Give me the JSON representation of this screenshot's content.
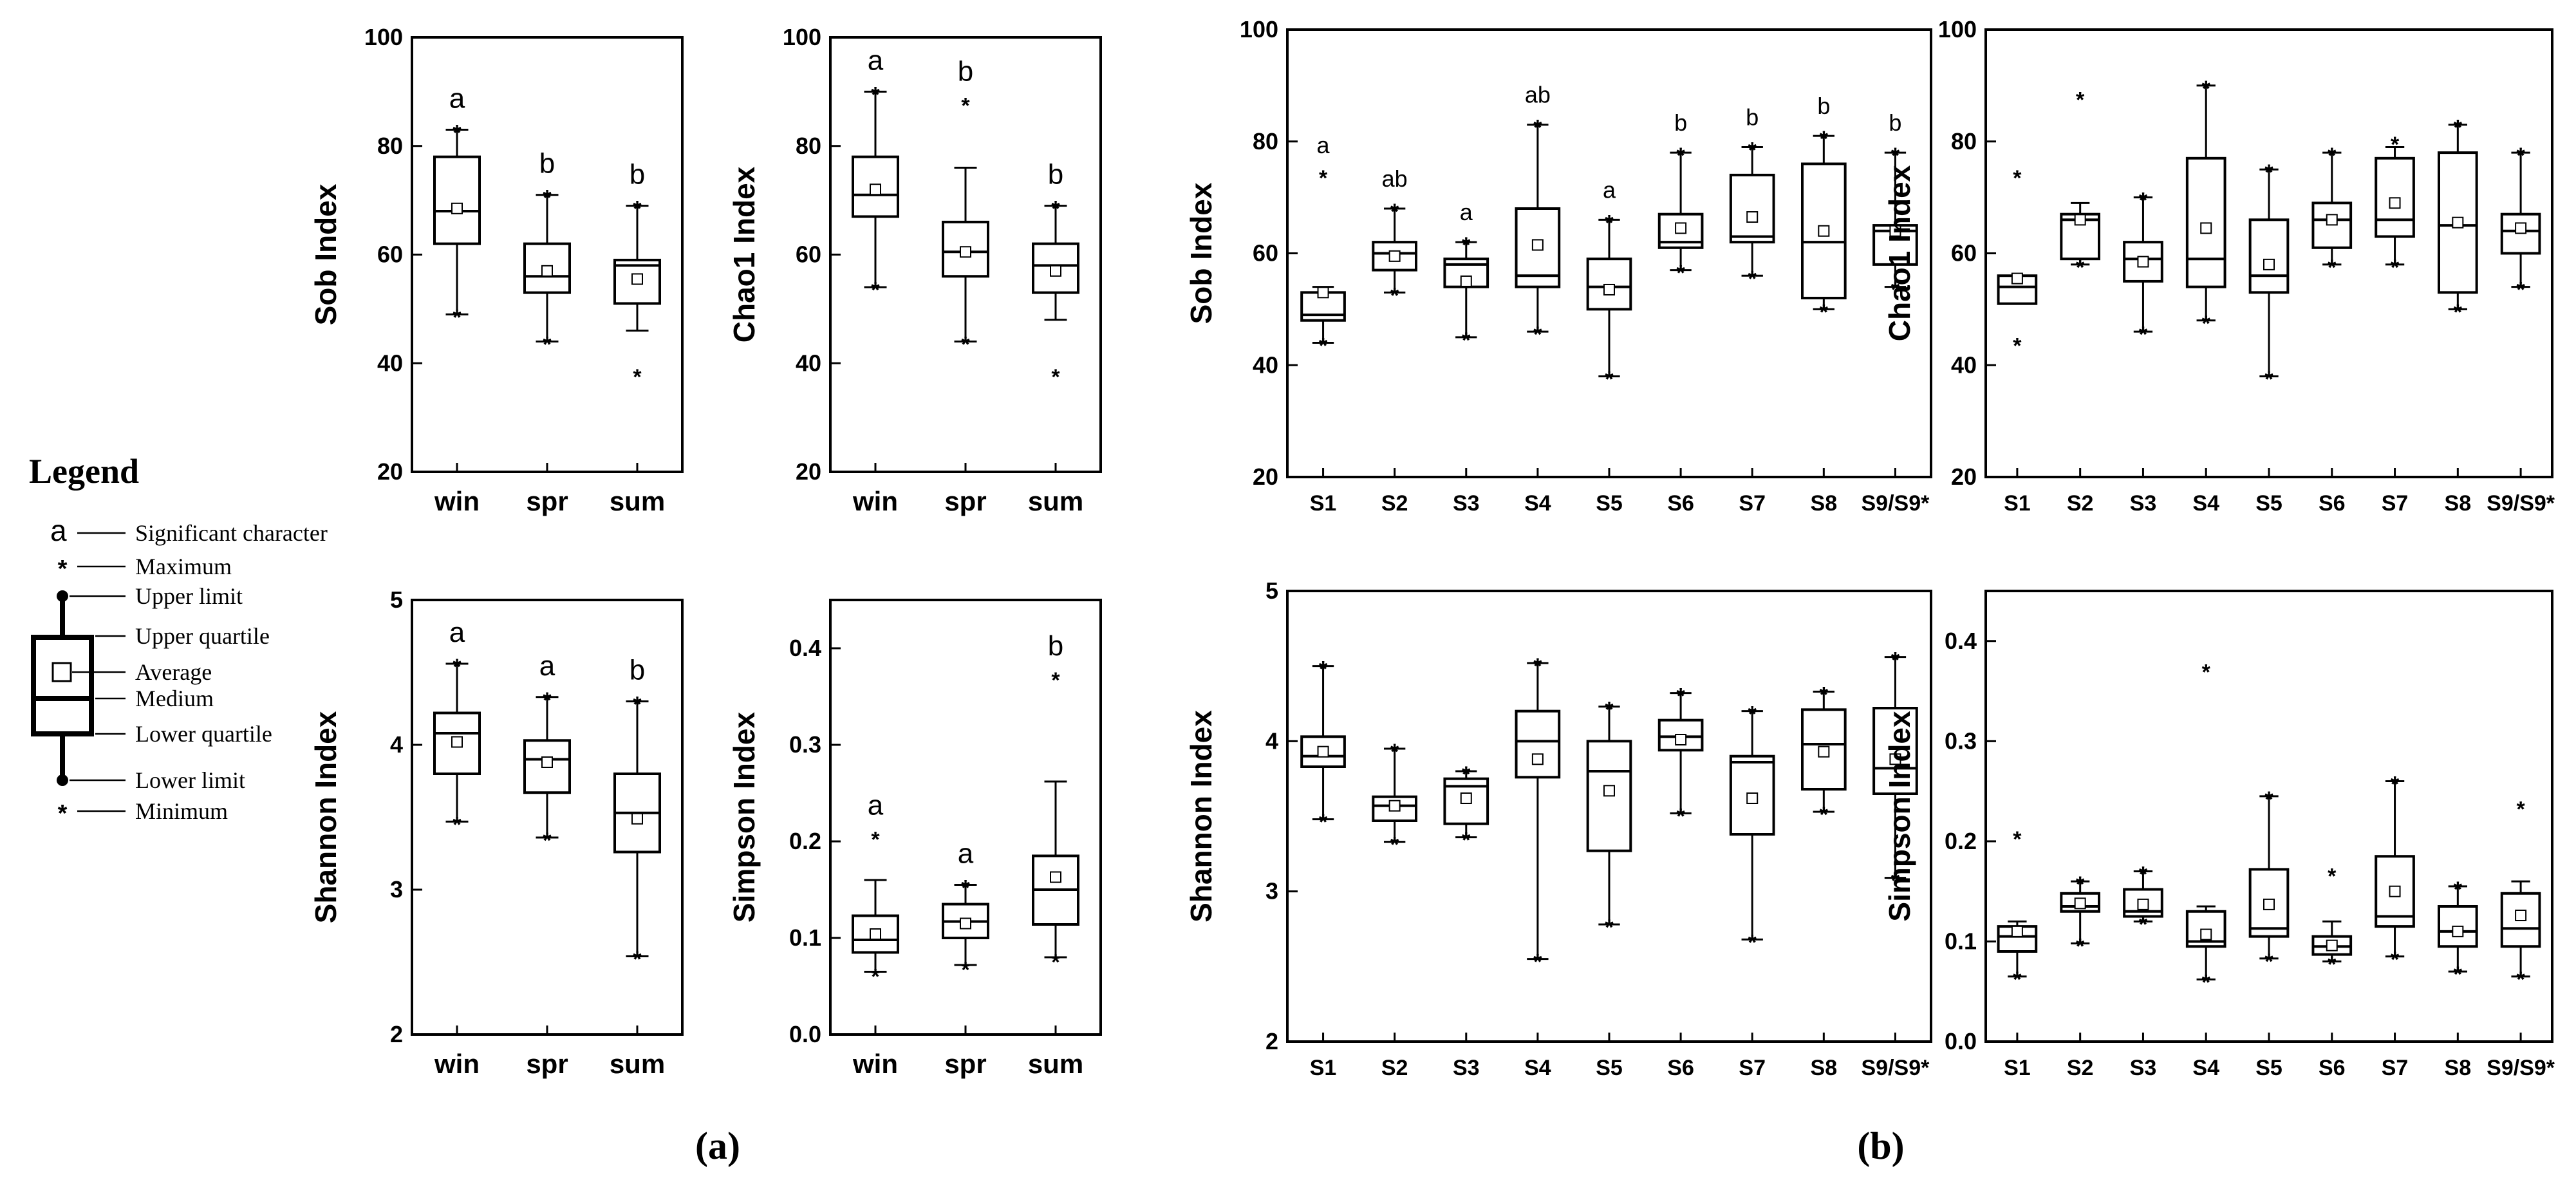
{
  "figure": {
    "panel_labels": [
      "(a)",
      "(b)"
    ]
  },
  "legend": {
    "title": "Legend",
    "items": [
      {
        "symbol": "a",
        "label": "Significant character"
      },
      {
        "symbol": "max-star",
        "label": "Maximum"
      },
      {
        "symbol": "whisker-top",
        "label": "Upper limit"
      },
      {
        "symbol": "box-top",
        "label": "Upper quartile"
      },
      {
        "symbol": "mean-square",
        "label": "Average"
      },
      {
        "symbol": "median-line",
        "label": "Medium"
      },
      {
        "symbol": "box-bottom",
        "label": "Lower quartile"
      },
      {
        "symbol": "whisker-bottom",
        "label": "Lower limit"
      },
      {
        "symbol": "min-star",
        "label": "Minimum"
      }
    ]
  },
  "chart_data": [
    {
      "id": "a-sob",
      "panel": "(a)",
      "type": "box",
      "ylabel": "Sob Index",
      "ylim": [
        20,
        100
      ],
      "yticks": [
        20,
        40,
        60,
        80,
        100
      ],
      "categories": [
        "win",
        "spr",
        "sum"
      ],
      "letters": [
        "a",
        "b",
        "b"
      ],
      "boxes": [
        {
          "q1": 62,
          "median": 68,
          "q3": 78,
          "whisker_low": 49,
          "whisker_high": 83,
          "mean": 68.5,
          "min": 49,
          "max": 83
        },
        {
          "q1": 53,
          "median": 56,
          "q3": 62,
          "whisker_low": 44,
          "whisker_high": 71,
          "mean": 57,
          "min": 44,
          "max": 71
        },
        {
          "q1": 51,
          "median": 58,
          "q3": 59,
          "whisker_low": 46,
          "whisker_high": 69,
          "mean": 55.5,
          "min": 38,
          "max": 69
        }
      ]
    },
    {
      "id": "a-chao1",
      "panel": "(a)",
      "type": "box",
      "ylabel": "Chao1 Index",
      "ylim": [
        20,
        100
      ],
      "yticks": [
        20,
        40,
        60,
        80,
        100
      ],
      "categories": [
        "win",
        "spr",
        "sum"
      ],
      "letters": [
        "a",
        "b",
        "b"
      ],
      "boxes": [
        {
          "q1": 67,
          "median": 71,
          "q3": 78,
          "whisker_low": 54,
          "whisker_high": 90,
          "mean": 72,
          "min": 54,
          "max": 90
        },
        {
          "q1": 56,
          "median": 60.5,
          "q3": 66,
          "whisker_low": 44,
          "whisker_high": 76,
          "mean": 60.5,
          "min": 44,
          "max": 88
        },
        {
          "q1": 53,
          "median": 58,
          "q3": 62,
          "whisker_low": 48,
          "whisker_high": 69,
          "mean": 57,
          "min": 38,
          "max": 69
        }
      ]
    },
    {
      "id": "a-shannon",
      "panel": "(a)",
      "type": "box",
      "ylabel": "Shannon Index",
      "ylim": [
        2,
        5
      ],
      "yticks": [
        2,
        3,
        4,
        5
      ],
      "categories": [
        "win",
        "spr",
        "sum"
      ],
      "letters": [
        "a",
        "a",
        "b"
      ],
      "boxes": [
        {
          "q1": 3.8,
          "median": 4.08,
          "q3": 4.22,
          "whisker_low": 3.47,
          "whisker_high": 4.56,
          "mean": 4.02,
          "min": 3.47,
          "max": 4.56
        },
        {
          "q1": 3.67,
          "median": 3.9,
          "q3": 4.03,
          "whisker_low": 3.36,
          "whisker_high": 4.33,
          "mean": 3.88,
          "min": 3.36,
          "max": 4.33
        },
        {
          "q1": 3.26,
          "median": 3.53,
          "q3": 3.8,
          "whisker_low": 2.54,
          "whisker_high": 4.3,
          "mean": 3.49,
          "min": 2.54,
          "max": 4.3
        }
      ]
    },
    {
      "id": "a-simpson",
      "panel": "(a)",
      "type": "box",
      "ylabel": "Simpson Index",
      "ylim": [
        0,
        0.45
      ],
      "yticks": [
        0.0,
        0.1,
        0.2,
        0.3,
        0.4
      ],
      "categories": [
        "win",
        "spr",
        "sum"
      ],
      "letters": [
        "a",
        "a",
        "b"
      ],
      "boxes": [
        {
          "q1": 0.085,
          "median": 0.098,
          "q3": 0.123,
          "whisker_low": 0.065,
          "whisker_high": 0.16,
          "mean": 0.104,
          "min": 0.063,
          "max": 0.205
        },
        {
          "q1": 0.1,
          "median": 0.117,
          "q3": 0.135,
          "whisker_low": 0.072,
          "whisker_high": 0.155,
          "mean": 0.115,
          "min": 0.07,
          "max": 0.155
        },
        {
          "q1": 0.114,
          "median": 0.15,
          "q3": 0.185,
          "whisker_low": 0.08,
          "whisker_high": 0.262,
          "mean": 0.163,
          "min": 0.078,
          "max": 0.37
        }
      ]
    },
    {
      "id": "b-sob",
      "panel": "(b)",
      "type": "box",
      "ylabel": "Sob Index",
      "ylim": [
        20,
        100
      ],
      "yticks": [
        20,
        40,
        60,
        80,
        100
      ],
      "categories": [
        "S1",
        "S2",
        "S3",
        "S4",
        "S5",
        "S6",
        "S7",
        "S8",
        "S9/S9*"
      ],
      "letters": [
        "a",
        "ab",
        "a",
        "ab",
        "a",
        "b",
        "b",
        "b",
        "b"
      ],
      "boxes": [
        {
          "q1": 48,
          "median": 49,
          "q3": 53,
          "whisker_low": 44,
          "whisker_high": 54,
          "mean": 53,
          "min": 44,
          "max": 74
        },
        {
          "q1": 57,
          "median": 60,
          "q3": 62,
          "whisker_low": 53,
          "whisker_high": 68,
          "mean": 59.5,
          "min": 53,
          "max": 68
        },
        {
          "q1": 54,
          "median": 58,
          "q3": 59,
          "whisker_low": 45,
          "whisker_high": 62,
          "mean": 55,
          "min": 45,
          "max": 62
        },
        {
          "q1": 54,
          "median": 56,
          "q3": 68,
          "whisker_low": 46,
          "whisker_high": 83,
          "mean": 61.5,
          "min": 46,
          "max": 83
        },
        {
          "q1": 50,
          "median": 54,
          "q3": 59,
          "whisker_low": 38,
          "whisker_high": 66,
          "mean": 53.5,
          "min": 38,
          "max": 66
        },
        {
          "q1": 61,
          "median": 62,
          "q3": 67,
          "whisker_low": 57,
          "whisker_high": 78,
          "mean": 64.5,
          "min": 57,
          "max": 78
        },
        {
          "q1": 62,
          "median": 63,
          "q3": 74,
          "whisker_low": 56,
          "whisker_high": 79,
          "mean": 66.5,
          "min": 56,
          "max": 79
        },
        {
          "q1": 52,
          "median": 62,
          "q3": 76,
          "whisker_low": 50,
          "whisker_high": 81,
          "mean": 64,
          "min": 50,
          "max": 81
        },
        {
          "q1": 58,
          "median": 64,
          "q3": 65,
          "whisker_low": 54,
          "whisker_high": 78,
          "mean": 64,
          "min": 54,
          "max": 78
        }
      ]
    },
    {
      "id": "b-chao1",
      "panel": "(b)",
      "type": "box",
      "ylabel": "Chao1 Index",
      "ylim": [
        20,
        100
      ],
      "yticks": [
        20,
        40,
        60,
        80,
        100
      ],
      "categories": [
        "S1",
        "S2",
        "S3",
        "S4",
        "S5",
        "S6",
        "S7",
        "S8",
        "S9/S9*"
      ],
      "letters": [],
      "boxes": [
        {
          "q1": 51,
          "median": 54,
          "q3": 56,
          "whisker_low": 51,
          "whisker_high": 56,
          "mean": 55.5,
          "min": 44,
          "max": 74
        },
        {
          "q1": 59,
          "median": 66,
          "q3": 67,
          "whisker_low": 58,
          "whisker_high": 69,
          "mean": 66,
          "min": 58,
          "max": 88
        },
        {
          "q1": 55,
          "median": 59,
          "q3": 62,
          "whisker_low": 46,
          "whisker_high": 70,
          "mean": 58.5,
          "min": 46,
          "max": 70
        },
        {
          "q1": 54,
          "median": 59,
          "q3": 77,
          "whisker_low": 48,
          "whisker_high": 90,
          "mean": 64.5,
          "min": 48,
          "max": 90
        },
        {
          "q1": 53,
          "median": 56,
          "q3": 66,
          "whisker_low": 38,
          "whisker_high": 75,
          "mean": 58,
          "min": 38,
          "max": 75
        },
        {
          "q1": 61,
          "median": 66,
          "q3": 69,
          "whisker_low": 58,
          "whisker_high": 78,
          "mean": 66,
          "min": 58,
          "max": 78
        },
        {
          "q1": 63,
          "median": 66,
          "q3": 77,
          "whisker_low": 58,
          "whisker_high": 79,
          "mean": 69,
          "min": 58,
          "max": 80
        },
        {
          "q1": 53,
          "median": 65,
          "q3": 78,
          "whisker_low": 50,
          "whisker_high": 83,
          "mean": 65.5,
          "min": 50,
          "max": 83
        },
        {
          "q1": 60,
          "median": 64,
          "q3": 67,
          "whisker_low": 54,
          "whisker_high": 78,
          "mean": 64.5,
          "min": 54,
          "max": 78
        }
      ]
    },
    {
      "id": "b-shannon",
      "panel": "(b)",
      "type": "box",
      "ylabel": "Shannon Index",
      "ylim": [
        2,
        5
      ],
      "yticks": [
        2,
        3,
        4,
        5
      ],
      "categories": [
        "S1",
        "S2",
        "S3",
        "S4",
        "S5",
        "S6",
        "S7",
        "S8",
        "S9/S9*"
      ],
      "letters": [],
      "boxes": [
        {
          "q1": 3.83,
          "median": 3.9,
          "q3": 4.03,
          "whisker_low": 3.48,
          "whisker_high": 4.5,
          "mean": 3.93,
          "min": 3.48,
          "max": 4.5
        },
        {
          "q1": 3.47,
          "median": 3.57,
          "q3": 3.63,
          "whisker_low": 3.33,
          "whisker_high": 3.95,
          "mean": 3.57,
          "min": 3.33,
          "max": 3.95
        },
        {
          "q1": 3.45,
          "median": 3.7,
          "q3": 3.75,
          "whisker_low": 3.36,
          "whisker_high": 3.8,
          "mean": 3.62,
          "min": 3.36,
          "max": 3.8
        },
        {
          "q1": 3.76,
          "median": 4.0,
          "q3": 4.2,
          "whisker_low": 2.55,
          "whisker_high": 4.52,
          "mean": 3.88,
          "min": 2.55,
          "max": 4.52
        },
        {
          "q1": 3.27,
          "median": 3.8,
          "q3": 4.0,
          "whisker_low": 2.78,
          "whisker_high": 4.23,
          "mean": 3.67,
          "min": 2.78,
          "max": 4.23
        },
        {
          "q1": 3.94,
          "median": 4.03,
          "q3": 4.14,
          "whisker_low": 3.52,
          "whisker_high": 4.32,
          "mean": 4.01,
          "min": 3.52,
          "max": 4.32
        },
        {
          "q1": 3.38,
          "median": 3.86,
          "q3": 3.9,
          "whisker_low": 2.68,
          "whisker_high": 4.2,
          "mean": 3.62,
          "min": 2.68,
          "max": 4.2
        },
        {
          "q1": 3.68,
          "median": 3.98,
          "q3": 4.21,
          "whisker_low": 3.53,
          "whisker_high": 4.33,
          "mean": 3.93,
          "min": 3.53,
          "max": 4.33
        },
        {
          "q1": 3.65,
          "median": 3.82,
          "q3": 4.22,
          "whisker_low": 3.09,
          "whisker_high": 4.56,
          "mean": 3.88,
          "min": 3.09,
          "max": 4.56
        }
      ]
    },
    {
      "id": "b-simpson",
      "panel": "(b)",
      "type": "box",
      "ylabel": "Simpson Index",
      "ylim": [
        0,
        0.45
      ],
      "yticks": [
        0.0,
        0.1,
        0.2,
        0.3,
        0.4
      ],
      "categories": [
        "S1",
        "S2",
        "S3",
        "S4",
        "S5",
        "S6",
        "S7",
        "S8",
        "S9/S9*"
      ],
      "letters": [],
      "boxes": [
        {
          "q1": 0.09,
          "median": 0.105,
          "q3": 0.115,
          "whisker_low": 0.065,
          "whisker_high": 0.12,
          "mean": 0.11,
          "min": 0.065,
          "max": 0.205
        },
        {
          "q1": 0.13,
          "median": 0.135,
          "q3": 0.148,
          "whisker_low": 0.098,
          "whisker_high": 0.16,
          "mean": 0.138,
          "min": 0.098,
          "max": 0.16
        },
        {
          "q1": 0.125,
          "median": 0.13,
          "q3": 0.152,
          "whisker_low": 0.12,
          "whisker_high": 0.17,
          "mean": 0.137,
          "min": 0.12,
          "max": 0.17
        },
        {
          "q1": 0.095,
          "median": 0.1,
          "q3": 0.13,
          "whisker_low": 0.062,
          "whisker_high": 0.135,
          "mean": 0.107,
          "min": 0.062,
          "max": 0.372
        },
        {
          "q1": 0.105,
          "median": 0.113,
          "q3": 0.172,
          "whisker_low": 0.083,
          "whisker_high": 0.245,
          "mean": 0.137,
          "min": 0.083,
          "max": 0.245
        },
        {
          "q1": 0.087,
          "median": 0.095,
          "q3": 0.105,
          "whisker_low": 0.08,
          "whisker_high": 0.12,
          "mean": 0.096,
          "min": 0.08,
          "max": 0.168
        },
        {
          "q1": 0.115,
          "median": 0.125,
          "q3": 0.185,
          "whisker_low": 0.085,
          "whisker_high": 0.26,
          "mean": 0.15,
          "min": 0.085,
          "max": 0.26
        },
        {
          "q1": 0.095,
          "median": 0.11,
          "q3": 0.135,
          "whisker_low": 0.07,
          "whisker_high": 0.155,
          "mean": 0.11,
          "min": 0.07,
          "max": 0.155
        },
        {
          "q1": 0.095,
          "median": 0.113,
          "q3": 0.148,
          "whisker_low": 0.065,
          "whisker_high": 0.16,
          "mean": 0.126,
          "min": 0.065,
          "max": 0.235
        }
      ]
    }
  ]
}
